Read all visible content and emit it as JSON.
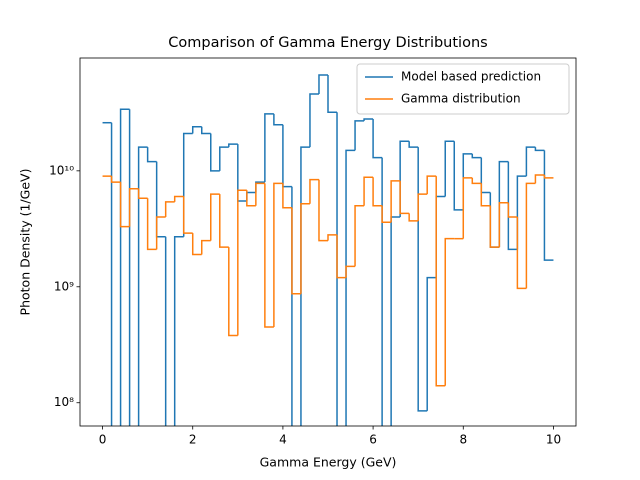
{
  "chart_data": {
    "type": "histogram",
    "title": "Comparison of Gamma Energy Distributions",
    "x_label": "Gamma Energy (GeV)",
    "y_label": "Photon Density (1/GeV)",
    "bins": [
      0,
      0.2,
      0.4,
      0.6,
      0.8,
      1,
      1.2,
      1.4,
      1.6,
      1.8,
      2,
      2.2,
      2.4,
      2.6,
      2.8,
      3,
      3.2,
      3.4,
      3.6,
      3.8,
      4,
      4.2,
      4.4,
      4.6,
      4.8,
      5,
      5.2,
      5.4,
      5.6,
      5.8,
      6,
      6.2,
      6.4,
      6.6,
      6.8,
      7,
      7.2,
      7.4,
      7.6,
      7.8,
      8,
      8.2,
      8.4,
      8.6,
      8.8,
      9,
      9.2,
      9.4,
      9.6,
      9.8,
      10
    ],
    "series": [
      {
        "name": "Model based prediction",
        "color": "#1f77b4",
        "values": [
          26000000000.0,
          0,
          34000000000.0,
          0,
          16000000000.0,
          12000000000.0,
          2700000000.0,
          0,
          2700000000.0,
          21000000000.0,
          24000000000.0,
          21000000000.0,
          10000000000.0,
          16000000000.0,
          17000000000.0,
          5500000000.0,
          6500000000.0,
          8000000000.0,
          31000000000.0,
          25000000000.0,
          7300000000.0,
          0,
          16000000000.0,
          46000000000.0,
          67000000000.0,
          32000000000.0,
          0,
          15000000000.0,
          27000000000.0,
          28000000000.0,
          13000000000.0,
          0,
          4000000000.0,
          18000000000.0,
          16000000000.0,
          85000000.0,
          1200000000.0,
          6000000000.0,
          18000000000.0,
          4600000000.0,
          14000000000.0,
          13000000000.0,
          6500000000.0,
          2200000000.0,
          12000000000.0,
          2100000000.0,
          9000000000.0,
          16000000000.0,
          15000000000.0,
          1700000000.0
        ]
      },
      {
        "name": "Gamma distribution",
        "color": "#ff7f0e",
        "values": [
          9000000000.0,
          8000000000.0,
          3300000000.0,
          7000000000.0,
          5800000000.0,
          2100000000.0,
          4000000000.0,
          5400000000.0,
          6000000000.0,
          2900000000.0,
          1900000000.0,
          2500000000.0,
          6300000000.0,
          2200000000.0,
          380000000.0,
          6800000000.0,
          5000000000.0,
          7800000000.0,
          450000000.0,
          7800000000.0,
          4800000000.0,
          870000000.0,
          5200000000.0,
          8400000000.0,
          2500000000.0,
          2800000000.0,
          1200000000.0,
          1500000000.0,
          5000000000.0,
          8800000000.0,
          5000000000.0,
          3600000000.0,
          8200000000.0,
          4300000000.0,
          3700000000.0,
          6300000000.0,
          9000000000.0,
          140000000.0,
          2600000000.0,
          2600000000.0,
          8700000000.0,
          7800000000.0,
          5000000000.0,
          2200000000.0,
          5300000000.0,
          4000000000.0,
          970000000.0,
          7800000000.0,
          9200000000.0,
          8700000000.0
        ]
      }
    ],
    "xlim": [
      -0.5,
      10.5
    ],
    "xticks": [
      0,
      2,
      4,
      6,
      8,
      10
    ],
    "ylim": [
      63000000.0,
      94000000000.0
    ],
    "log_y": true,
    "yticks": [
      {
        "value": 100000000.0,
        "label": "10⁸"
      },
      {
        "value": 1000000000.0,
        "label": "10⁹"
      },
      {
        "value": 10000000000.0,
        "label": "10¹⁰"
      }
    ],
    "legend": "upper right",
    "grid": false
  }
}
